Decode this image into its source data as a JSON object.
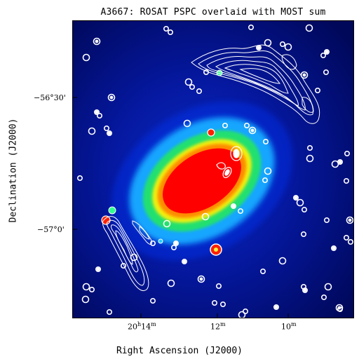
{
  "title": "A3667: ROSAT PSPC overlaid with MOST sum",
  "xlabel": "Right Ascension (J2000)",
  "ylabel": "Declination (J2000)",
  "ra_ticks": [
    {
      "h": "20",
      "u1": "h",
      "m": "14",
      "u2": "m"
    },
    {
      "m": "12",
      "u2": "m"
    },
    {
      "m": "10",
      "u2": "m"
    }
  ],
  "dec_ticks": [
    {
      "deg": "−56°",
      "min": "30'"
    },
    {
      "deg": "−57°",
      "min": "0'"
    }
  ],
  "colors": {
    "background": "#000c6e",
    "contour": "#ffffff",
    "cluster_core": "#ff0000"
  }
}
